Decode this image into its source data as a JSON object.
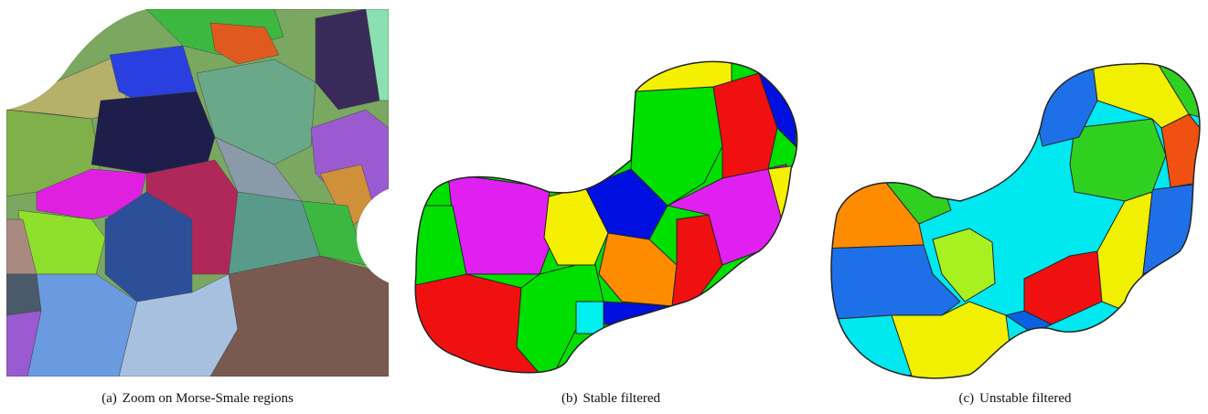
{
  "figure": {
    "panels": [
      {
        "label": "(a)",
        "caption": "Zoom on Morse-Smale regions"
      },
      {
        "label": "(b)",
        "caption": "Stable filtered"
      },
      {
        "label": "(c)",
        "caption": "Unstable filtered"
      }
    ]
  }
}
